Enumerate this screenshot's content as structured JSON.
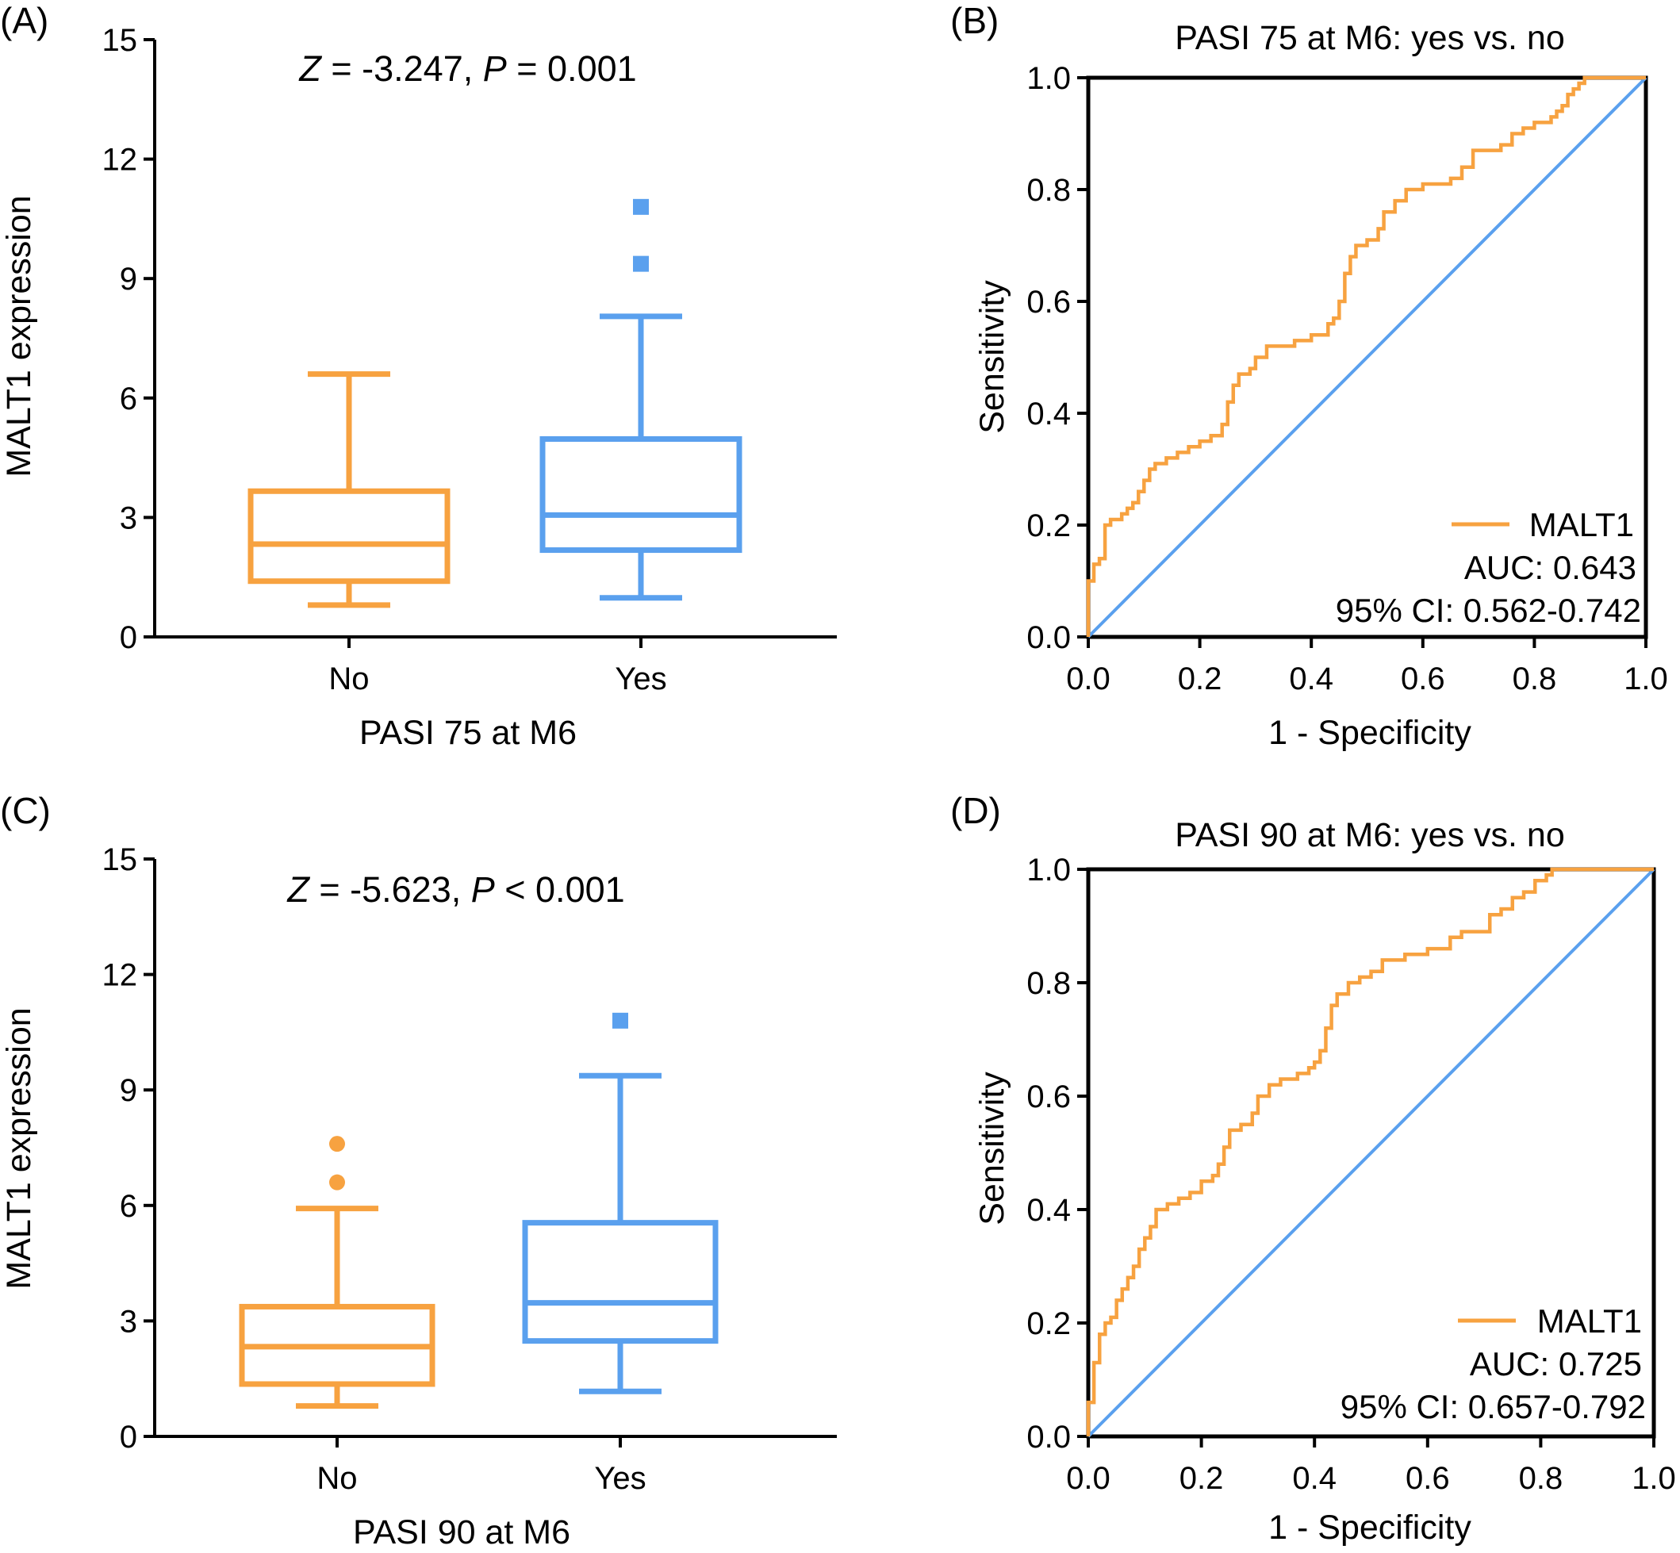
{
  "colors": {
    "no": "#F7A240",
    "yes": "#5AA0EE",
    "diagonal": "#5AA0EE",
    "roc": "#F7A240",
    "axis": "#000000"
  },
  "chart_data": [
    {
      "panel": "(A)",
      "type": "box",
      "categories": [
        "No",
        "Yes"
      ],
      "xlabel": "PASI 75 at M6",
      "ylabel": "MALT1 expression",
      "ylim": [
        0,
        15
      ],
      "yticks": [
        "0",
        "3",
        "6",
        "9",
        "12",
        "15"
      ],
      "annotation": {
        "z_sym": "Z",
        "z_text": " = -3.247, ",
        "p_sym": "P",
        "p_text": " = 0.001"
      },
      "series": [
        {
          "category": "No",
          "min": 0.8,
          "q1": 1.4,
          "median": 2.33,
          "q3": 3.66,
          "max": 6.6,
          "outliers": [],
          "marker": "square"
        },
        {
          "category": "Yes",
          "min": 0.98,
          "q1": 2.18,
          "median": 3.06,
          "q3": 4.97,
          "max": 8.05,
          "outliers": [
            9.37,
            10.8
          ],
          "marker": "square"
        }
      ]
    },
    {
      "panel": "(B)",
      "type": "line",
      "title": "PASI 75 at M6: yes vs. no",
      "xlabel": "1 - Specificity",
      "ylabel": "Sensitivity",
      "xlim": [
        0,
        1
      ],
      "ylim": [
        0,
        1
      ],
      "xticks": [
        "0.0",
        "0.2",
        "0.4",
        "0.6",
        "0.8",
        "1.0"
      ],
      "yticks": [
        "0.0",
        "0.2",
        "0.4",
        "0.6",
        "0.8",
        "1.0"
      ],
      "legend": {
        "label": "MALT1",
        "auc": "AUC: 0.643",
        "ci": "95% CI: 0.562-0.742",
        "position": "bottom-right"
      },
      "series": [
        {
          "name": "MALT1",
          "points": [
            [
              0,
              0
            ],
            [
              0,
              0.1
            ],
            [
              0.01,
              0.1
            ],
            [
              0.01,
              0.13
            ],
            [
              0.02,
              0.13
            ],
            [
              0.02,
              0.14
            ],
            [
              0.03,
              0.14
            ],
            [
              0.03,
              0.2
            ],
            [
              0.04,
              0.21
            ],
            [
              0.06,
              0.22
            ],
            [
              0.07,
              0.23
            ],
            [
              0.08,
              0.24
            ],
            [
              0.09,
              0.26
            ],
            [
              0.1,
              0.28
            ],
            [
              0.11,
              0.3
            ],
            [
              0.12,
              0.31
            ],
            [
              0.14,
              0.32
            ],
            [
              0.16,
              0.33
            ],
            [
              0.18,
              0.34
            ],
            [
              0.2,
              0.35
            ],
            [
              0.22,
              0.36
            ],
            [
              0.24,
              0.38
            ],
            [
              0.25,
              0.42
            ],
            [
              0.26,
              0.45
            ],
            [
              0.27,
              0.47
            ],
            [
              0.29,
              0.48
            ],
            [
              0.3,
              0.5
            ],
            [
              0.32,
              0.52
            ],
            [
              0.35,
              0.52
            ],
            [
              0.37,
              0.53
            ],
            [
              0.4,
              0.54
            ],
            [
              0.42,
              0.54
            ],
            [
              0.43,
              0.56
            ],
            [
              0.44,
              0.57
            ],
            [
              0.45,
              0.6
            ],
            [
              0.46,
              0.65
            ],
            [
              0.47,
              0.68
            ],
            [
              0.48,
              0.7
            ],
            [
              0.5,
              0.71
            ],
            [
              0.52,
              0.73
            ],
            [
              0.53,
              0.76
            ],
            [
              0.55,
              0.78
            ],
            [
              0.57,
              0.8
            ],
            [
              0.6,
              0.81
            ],
            [
              0.63,
              0.81
            ],
            [
              0.65,
              0.82
            ],
            [
              0.67,
              0.84
            ],
            [
              0.69,
              0.87
            ],
            [
              0.72,
              0.87
            ],
            [
              0.74,
              0.88
            ],
            [
              0.76,
              0.9
            ],
            [
              0.78,
              0.91
            ],
            [
              0.8,
              0.92
            ],
            [
              0.83,
              0.93
            ],
            [
              0.84,
              0.94
            ],
            [
              0.85,
              0.95
            ],
            [
              0.86,
              0.97
            ],
            [
              0.87,
              0.98
            ],
            [
              0.88,
              0.99
            ],
            [
              0.89,
              1.0
            ],
            [
              1,
              1
            ]
          ]
        },
        {
          "name": "reference",
          "points": [
            [
              0,
              0
            ],
            [
              1,
              1
            ]
          ]
        }
      ]
    },
    {
      "panel": "(C)",
      "type": "box",
      "categories": [
        "No",
        "Yes"
      ],
      "xlabel": "PASI 90 at M6",
      "ylabel": "MALT1 expression",
      "ylim": [
        0,
        15
      ],
      "yticks": [
        "0",
        "3",
        "6",
        "9",
        "12",
        "15"
      ],
      "annotation": {
        "z_sym": "Z",
        "z_text": " = -5.623, ",
        "p_sym": "P",
        "p_text": " < 0.001"
      },
      "series": [
        {
          "category": "No",
          "min": 0.79,
          "q1": 1.36,
          "median": 2.33,
          "q3": 3.37,
          "max": 5.92,
          "outliers": [
            6.6,
            7.6
          ],
          "marker": "circle"
        },
        {
          "category": "Yes",
          "min": 1.17,
          "q1": 2.48,
          "median": 3.47,
          "q3": 5.55,
          "max": 9.37,
          "outliers": [
            10.8
          ],
          "marker": "square"
        }
      ]
    },
    {
      "panel": "(D)",
      "type": "line",
      "title": "PASI 90 at M6: yes vs. no",
      "xlabel": "1 - Specificity",
      "ylabel": "Sensitivity",
      "xlim": [
        0,
        1
      ],
      "ylim": [
        0,
        1
      ],
      "xticks": [
        "0.0",
        "0.2",
        "0.4",
        "0.6",
        "0.8",
        "1.0"
      ],
      "yticks": [
        "0.0",
        "0.2",
        "0.4",
        "0.6",
        "0.8",
        "1.0"
      ],
      "legend": {
        "label": "MALT1",
        "auc": "AUC: 0.725",
        "ci": "95% CI: 0.657-0.792",
        "position": "bottom-right"
      },
      "series": [
        {
          "name": "MALT1",
          "points": [
            [
              0,
              0
            ],
            [
              0,
              0.06
            ],
            [
              0.01,
              0.06
            ],
            [
              0.01,
              0.13
            ],
            [
              0.02,
              0.14
            ],
            [
              0.02,
              0.18
            ],
            [
              0.03,
              0.2
            ],
            [
              0.04,
              0.21
            ],
            [
              0.05,
              0.24
            ],
            [
              0.06,
              0.26
            ],
            [
              0.07,
              0.28
            ],
            [
              0.08,
              0.3
            ],
            [
              0.09,
              0.33
            ],
            [
              0.1,
              0.35
            ],
            [
              0.11,
              0.37
            ],
            [
              0.12,
              0.4
            ],
            [
              0.14,
              0.41
            ],
            [
              0.16,
              0.42
            ],
            [
              0.18,
              0.43
            ],
            [
              0.2,
              0.45
            ],
            [
              0.22,
              0.46
            ],
            [
              0.23,
              0.48
            ],
            [
              0.24,
              0.51
            ],
            [
              0.25,
              0.54
            ],
            [
              0.27,
              0.55
            ],
            [
              0.29,
              0.57
            ],
            [
              0.3,
              0.6
            ],
            [
              0.32,
              0.62
            ],
            [
              0.34,
              0.63
            ],
            [
              0.37,
              0.64
            ],
            [
              0.39,
              0.65
            ],
            [
              0.4,
              0.66
            ],
            [
              0.41,
              0.68
            ],
            [
              0.42,
              0.72
            ],
            [
              0.43,
              0.76
            ],
            [
              0.44,
              0.78
            ],
            [
              0.46,
              0.8
            ],
            [
              0.48,
              0.81
            ],
            [
              0.5,
              0.82
            ],
            [
              0.52,
              0.84
            ],
            [
              0.56,
              0.85
            ],
            [
              0.6,
              0.86
            ],
            [
              0.64,
              0.88
            ],
            [
              0.66,
              0.89
            ],
            [
              0.7,
              0.89
            ],
            [
              0.71,
              0.92
            ],
            [
              0.73,
              0.93
            ],
            [
              0.75,
              0.95
            ],
            [
              0.77,
              0.96
            ],
            [
              0.79,
              0.98
            ],
            [
              0.81,
              0.99
            ],
            [
              0.82,
              1.0
            ],
            [
              1,
              1
            ]
          ]
        },
        {
          "name": "reference",
          "points": [
            [
              0,
              0
            ],
            [
              1,
              1
            ]
          ]
        }
      ]
    }
  ]
}
